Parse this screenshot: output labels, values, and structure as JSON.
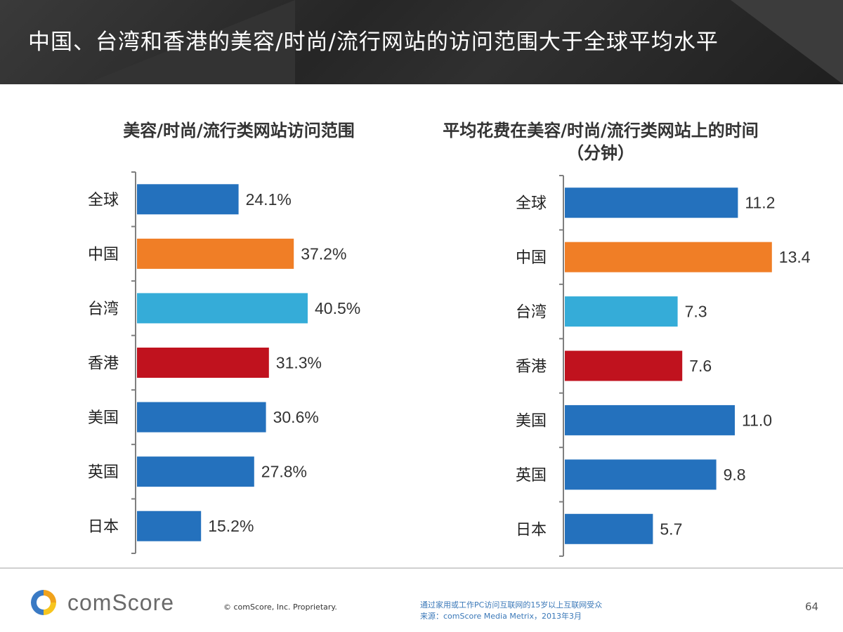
{
  "header": {
    "title": "中国、台湾和香港的美容/时尚/流行网站的访问范围大于全球平均水平"
  },
  "chart_data": [
    {
      "type": "bar",
      "orientation": "horizontal",
      "title": "美容/时尚/流行类网站访问范围",
      "categories": [
        "全球",
        "中国",
        "台湾",
        "香港",
        "美国",
        "英国",
        "日本"
      ],
      "values": [
        24.1,
        37.2,
        40.5,
        31.3,
        30.6,
        27.8,
        15.2
      ],
      "value_labels": [
        "24.1%",
        "37.2%",
        "40.5%",
        "31.3%",
        "30.6%",
        "27.8%",
        "15.2%"
      ],
      "unit": "%",
      "xlim": [
        0,
        65
      ],
      "bar_colors": [
        "#2471bd",
        "#f07e26",
        "#35acd8",
        "#c0121e",
        "#2471bd",
        "#2471bd",
        "#2471bd"
      ]
    },
    {
      "type": "bar",
      "orientation": "horizontal",
      "title": "平均花费在美容/时尚/流行类网站上的时间",
      "title_line2": "（分钟）",
      "categories": [
        "全球",
        "中国",
        "台湾",
        "香港",
        "美国",
        "英国",
        "日本"
      ],
      "values": [
        11.2,
        13.4,
        7.3,
        7.6,
        11.0,
        9.8,
        5.7
      ],
      "value_labels": [
        "11.2",
        "13.4",
        "7.3",
        "7.6",
        "11.0",
        "9.8",
        "5.7"
      ],
      "unit": "minutes",
      "xlim": [
        0,
        21
      ],
      "bar_colors": [
        "#2471bd",
        "#f07e26",
        "#35acd8",
        "#c0121e",
        "#2471bd",
        "#2471bd",
        "#2471bd"
      ]
    }
  ],
  "footer": {
    "logo_text": "comScore",
    "copyright": "© comScore, Inc.   Proprietary.",
    "note_line1": "通过家用或工作PC访问互联网的15岁以上互联网受众",
    "note_line2": "来源：comScore Media Metrix，2013年3月",
    "page_number": "64"
  }
}
